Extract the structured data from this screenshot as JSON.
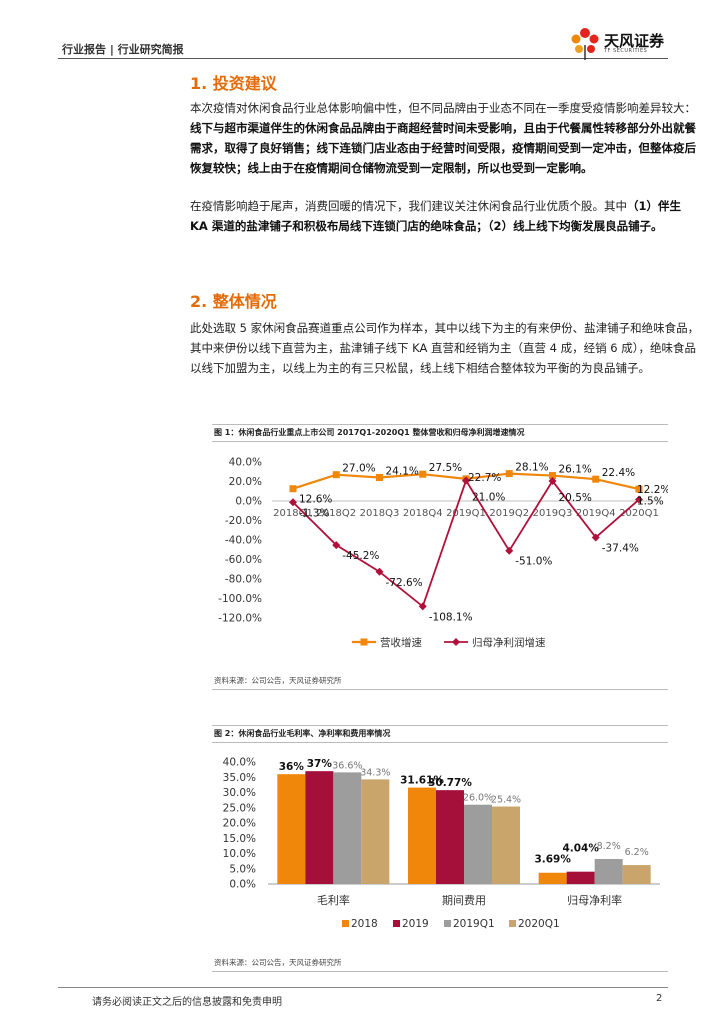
{
  "header": {
    "label": "行业报告 | 行业研究简报",
    "logo_cn": "天风证券",
    "logo_en": "TF SECURITIES"
  },
  "section1": {
    "title": "1. 投资建议",
    "p1_plain": "本次疫情对休闲食品行业总体影响偏中性，但不同品牌由于业态不同在一季度受疫情影响差异较大：",
    "p1_bold": "线下与超市渠道伴生的休闲食品品牌由于商超经营时间未受影响，且由于代餐属性转移部分外出就餐需求，取得了良好销售；线下连锁门店业态由于经营时间受限，疫情期间受到一定冲击，但整体疫后恢复较快；线上由于在疫情期间仓储物流受到一定限制，所以也受到一定影响。",
    "p2_plain": "在疫情影响趋于尾声，消费回暖的情况下，我们建议关注休闲食品行业优质个股。其中",
    "p2_bold": "（1）伴生 KA 渠道的盐津铺子和积极布局线下连锁门店的绝味食品；（2）线上线下均衡发展良品铺子。"
  },
  "section2": {
    "title": "2. 整体情况",
    "p1": "此处选取 5 家休闲食品赛道重点公司作为样本，其中以线下为主的有来伊份、盐津铺子和绝味食品，其中来伊份以线下直营为主，盐津铺子线下 KA 直营和经销为主（直营 4 成，经销 6 成），绝味食品以线下加盟为主，以线上为主的有三只松鼠，线上线下相结合整体较为平衡的为良品铺子。"
  },
  "figure1": {
    "title": "图 1：休闲食品行业重点上市公司 2017Q1-2020Q1 整体营收和归母净利润增速情况",
    "source": "资料来源：公司公告，天风证券研究所"
  },
  "figure2": {
    "title": "图 2：休闲食品行业毛利率、净利率和费用率情况",
    "source": "资料来源：公司公告，天风证券研究所"
  },
  "chart_data": [
    {
      "type": "line",
      "categories": [
        "2018Q1",
        "2018Q2",
        "2018Q3",
        "2018Q4",
        "2019Q1",
        "2019Q2",
        "2019Q3",
        "2019Q4",
        "2020Q1"
      ],
      "series": [
        {
          "name": "营收增速",
          "values": [
            12.6,
            27.0,
            24.1,
            27.5,
            22.7,
            28.1,
            26.1,
            22.4,
            12.2
          ],
          "labels": [
            "12.6%",
            "27.0%",
            "24.1%",
            "27.5%",
            "22.7%",
            "28.1%",
            "26.1%",
            "22.4%",
            "12.2%"
          ],
          "color": "#f0860a"
        },
        {
          "name": "归母净利润增速",
          "values": [
            -1.3,
            -45.2,
            -72.6,
            -108.1,
            21.0,
            -51.0,
            20.5,
            -37.4,
            1.5
          ],
          "labels": [
            "-1.3%",
            "-45.2%",
            "-72.6%",
            "-108.1%",
            "21.0%",
            "-51.0%",
            "20.5%",
            "-37.4%",
            "1.5%"
          ],
          "color": "#b0103a"
        }
      ],
      "yticks": [
        "40.0%",
        "20.0%",
        "0.0%",
        "-20.0%",
        "-40.0%",
        "-60.0%",
        "-80.0%",
        "-100.0%",
        "-120.0%"
      ],
      "ylim": [
        -120,
        40
      ],
      "legend": "bottom",
      "grid": false
    },
    {
      "type": "bar",
      "categories": [
        "毛利率",
        "期间费用",
        "归母净利率"
      ],
      "series": [
        {
          "name": "2018",
          "values": [
            36.0,
            31.61,
            3.69
          ],
          "color": "#f0860a"
        },
        {
          "name": "2019",
          "values": [
            37.0,
            30.77,
            4.04
          ],
          "color": "#a5103a"
        },
        {
          "name": "2019Q1",
          "values": [
            36.6,
            26.0,
            8.2
          ],
          "color": "#9d9d9d"
        },
        {
          "name": "2020Q1",
          "values": [
            34.3,
            25.4,
            6.2
          ],
          "color": "#c9a46b"
        }
      ],
      "data_labels": [
        [
          "36%",
          "37%",
          "36.6%",
          "34.3%"
        ],
        [
          "31.61%",
          "30.77%",
          "26.0%",
          "25.4%"
        ],
        [
          "3.69%",
          "4.04%",
          "8.2%",
          "6.2%"
        ]
      ],
      "yticks": [
        "40.0%",
        "35.0%",
        "30.0%",
        "25.0%",
        "20.0%",
        "15.0%",
        "10.0%",
        "5.0%",
        "0.0%"
      ],
      "ylim": [
        0,
        40
      ],
      "legend": "bottom",
      "grid": false
    }
  ],
  "footer": {
    "text": "请务必阅读正文之后的信息披露和免责申明",
    "page": "2"
  }
}
